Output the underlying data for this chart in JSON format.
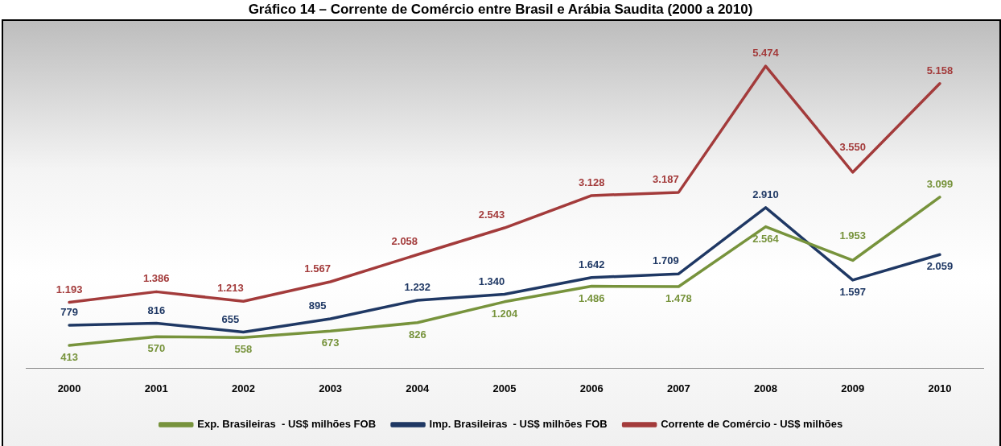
{
  "chart_data": {
    "type": "line",
    "title": "Gráfico 14 – Corrente de Comércio entre Brasil e Arábia Saudita (2000 a 2010)",
    "categories": [
      "2000",
      "2001",
      "2002",
      "2003",
      "2004",
      "2005",
      "2006",
      "2007",
      "2008",
      "2009",
      "2010"
    ],
    "series": [
      {
        "name": "Exp. Brasileiras  - US$ milhões FOB",
        "color": "#77933c",
        "values": [
          413,
          570,
          558,
          673,
          826,
          1204,
          1486,
          1478,
          2564,
          1953,
          3099
        ],
        "value_labels": [
          "413",
          "570",
          "558",
          "673",
          "826",
          "1.204",
          "1.486",
          "1.478",
          "2.564",
          "1.953",
          "3.099"
        ]
      },
      {
        "name": "Imp. Brasileiras  - US$ milhões FOB",
        "color": "#1f3864",
        "values": [
          779,
          816,
          655,
          895,
          1232,
          1340,
          1642,
          1709,
          2910,
          1597,
          2059
        ],
        "value_labels": [
          "779",
          "816",
          "655",
          "895",
          "1.232",
          "1.340",
          "1.642",
          "1.709",
          "2.910",
          "1.597",
          "2.059"
        ]
      },
      {
        "name": "Corrente de Comércio - US$ milhões",
        "color": "#a33b3b",
        "values": [
          1193,
          1386,
          1213,
          1567,
          2058,
          2543,
          3128,
          3187,
          5474,
          3550,
          5158
        ],
        "value_labels": [
          "1.193",
          "1.386",
          "1.213",
          "1.567",
          "2.058",
          "2.543",
          "3.128",
          "3.187",
          "5.474",
          "3.550",
          "5.158"
        ]
      }
    ],
    "tick_labels": "x",
    "grid": false,
    "legend": "bottom",
    "marker": "none",
    "line_style": "solid"
  }
}
